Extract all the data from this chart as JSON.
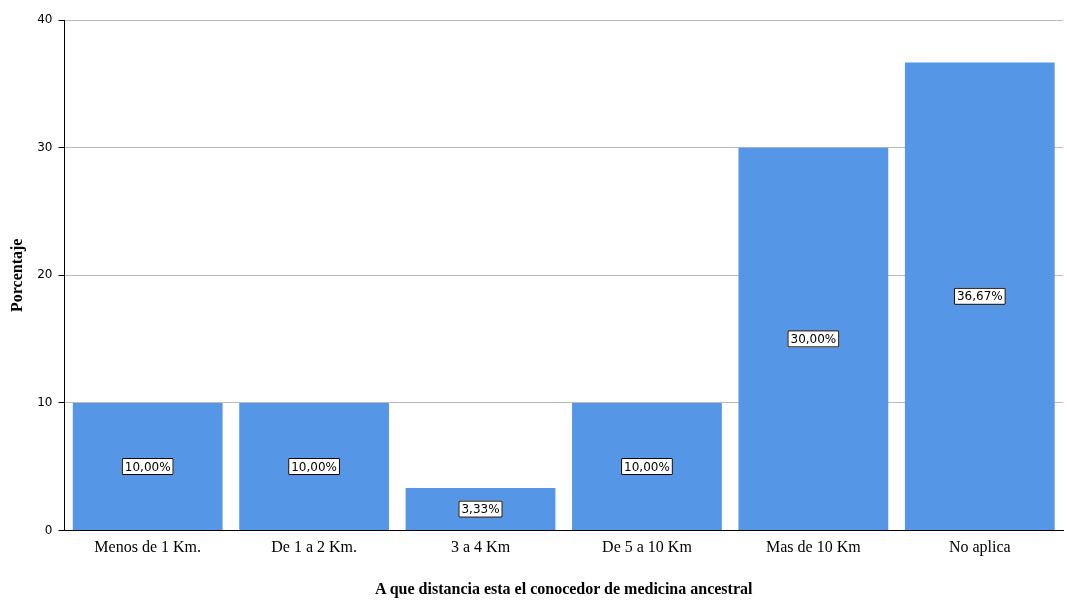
{
  "chart_data": {
    "type": "bar",
    "xlabel": "A que distancia esta el conocedor de medicina ancestral",
    "ylabel": "Porcentaje",
    "categories": [
      "Menos de 1 Km.",
      "De 1 a 2 Km.",
      "3 a 4 Km",
      "De 5 a 10 Km",
      "Mas de 10 Km",
      "No aplica"
    ],
    "values": [
      10,
      10,
      3.33,
      10,
      30,
      36.67
    ],
    "value_labels": [
      "10,00%",
      "10,00%",
      "3,33%",
      "10,00%",
      "30,00%",
      "36,67%"
    ],
    "color": "#5596e6",
    "ylim": [
      0,
      40
    ],
    "yticks": [
      0,
      10,
      20,
      30,
      40
    ],
    "grid": "y",
    "legend": false
  }
}
